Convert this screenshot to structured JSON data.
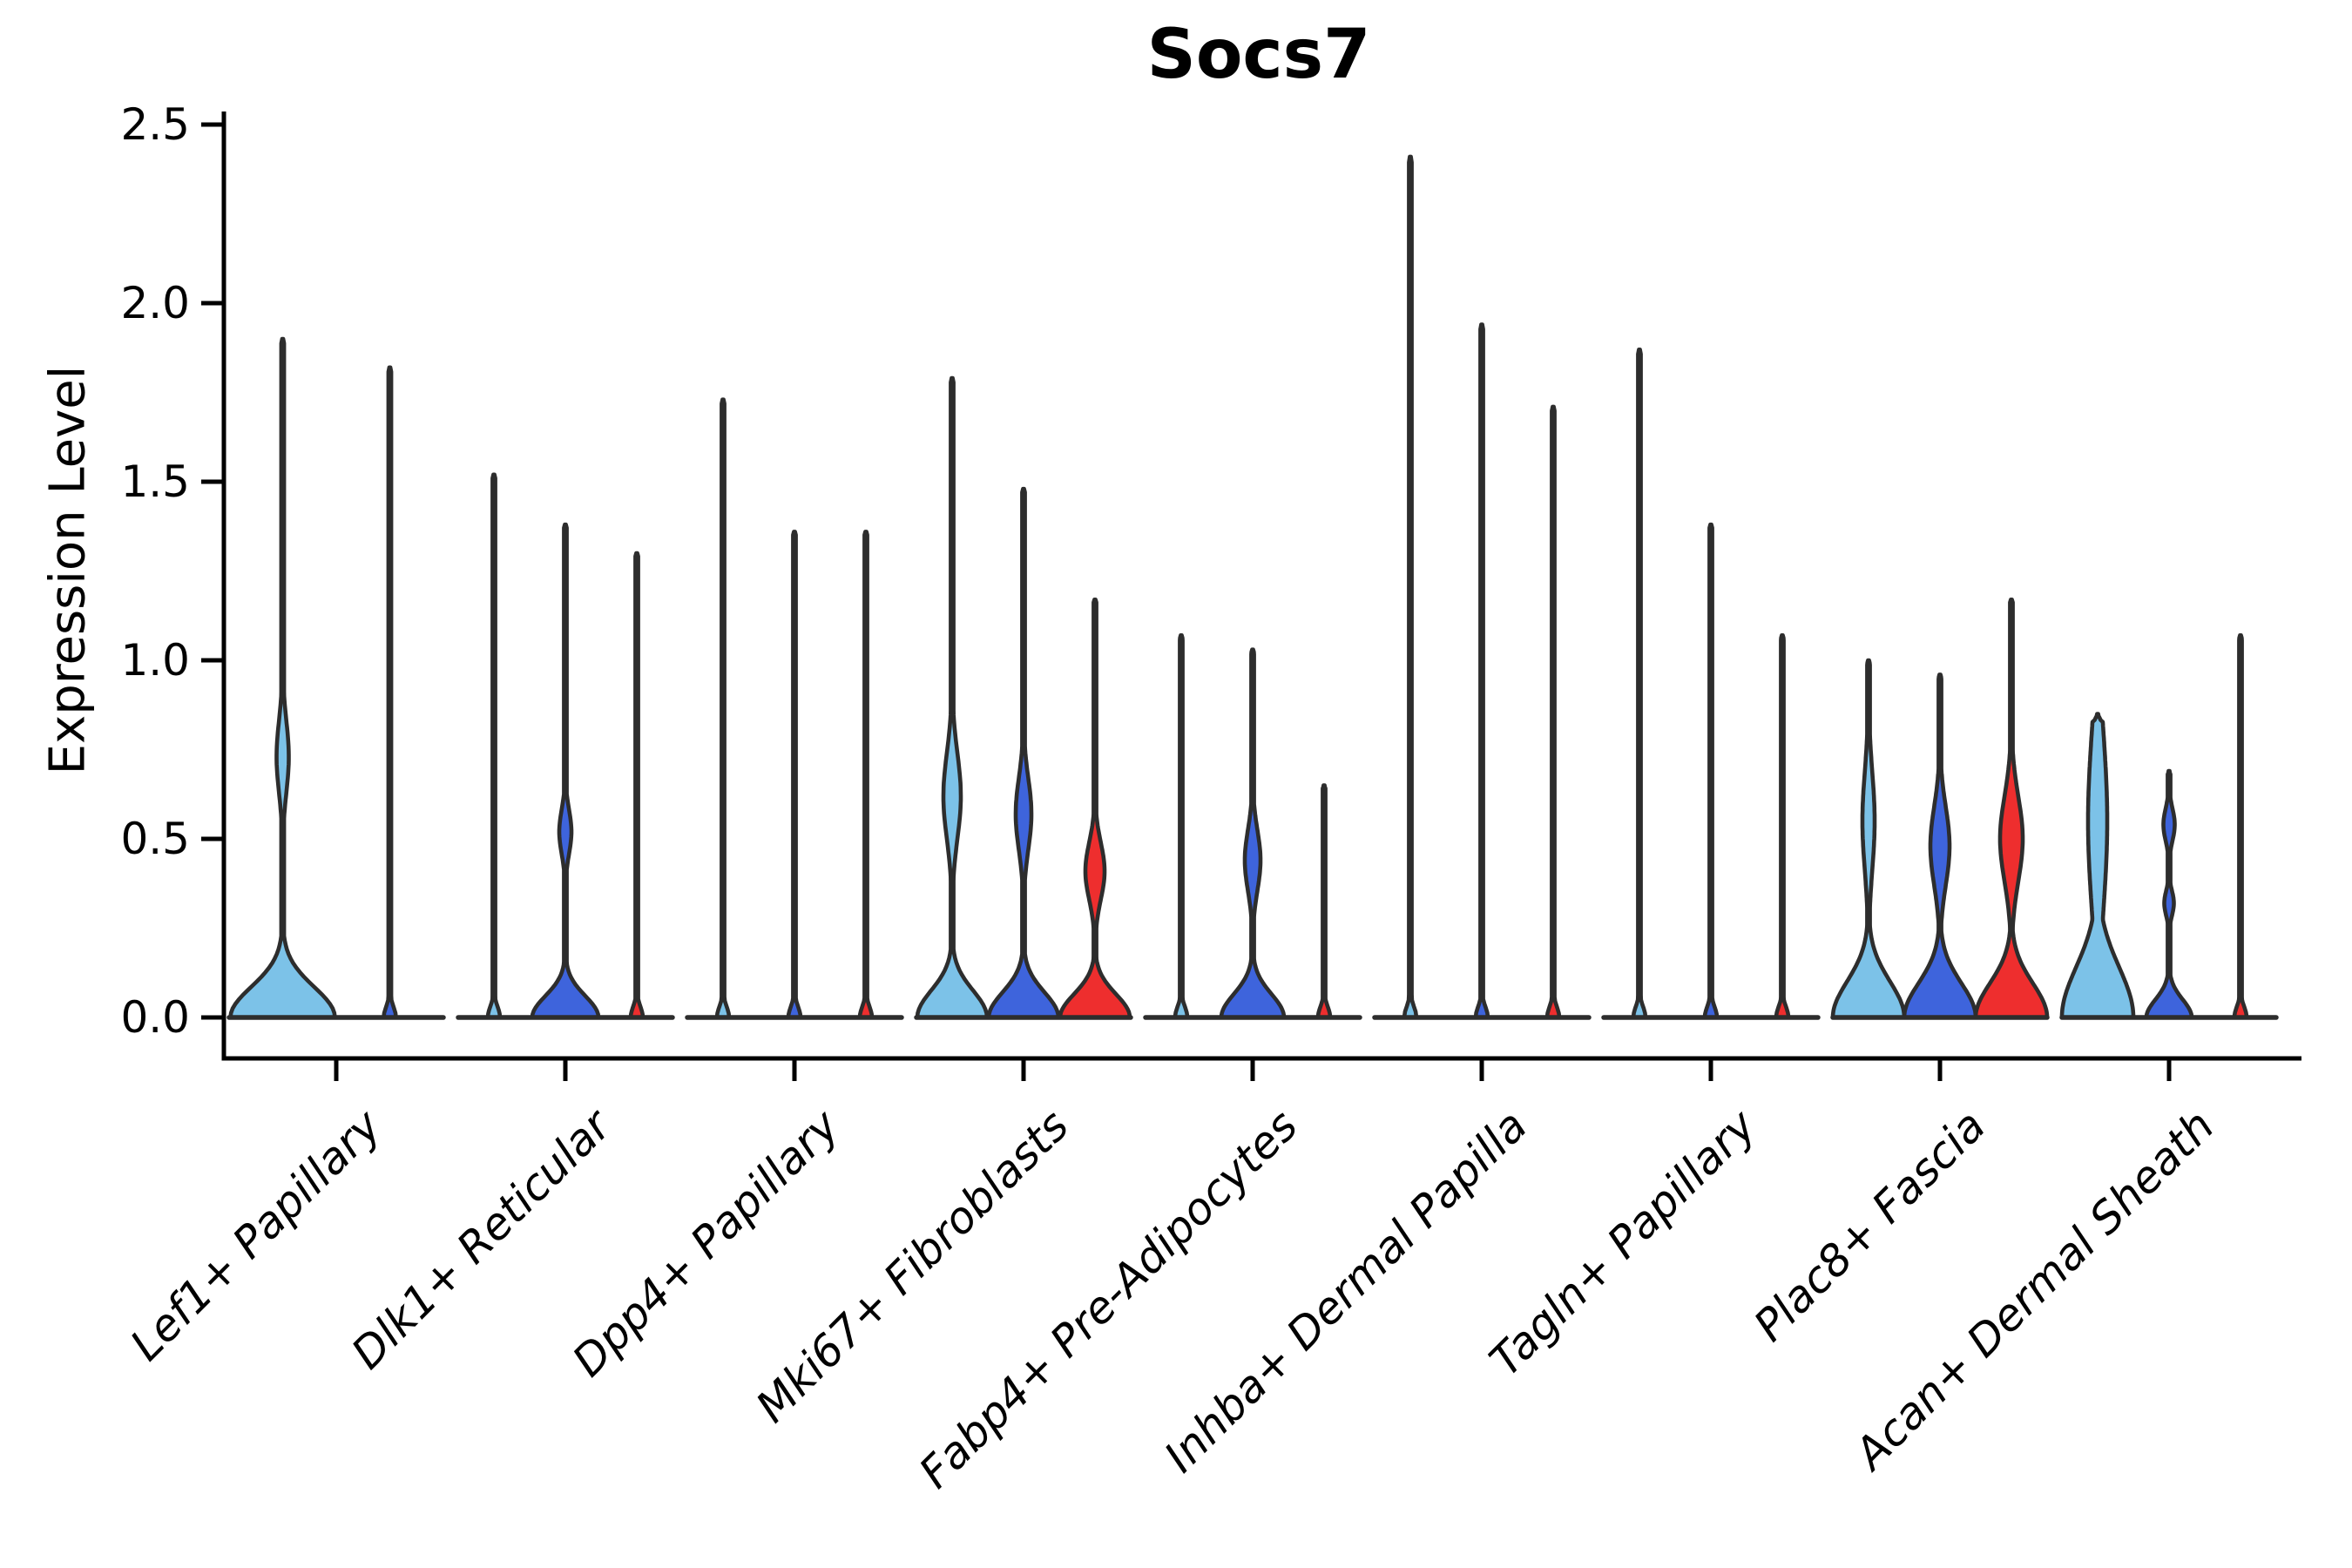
{
  "title": "Socs7",
  "y_axis": {
    "label": "Expression Level",
    "tick_labels": [
      "0.0",
      "0.5",
      "1.0",
      "1.5",
      "2.0",
      "2.5"
    ],
    "tick_values": [
      0,
      0.5,
      1.0,
      1.5,
      2.0,
      2.5
    ]
  },
  "colors": {
    "light_blue": "#7CC2E8",
    "royal_blue": "#3E64DC",
    "red": "#EE2E2E",
    "outline": "#2D2D2D",
    "axis": "#000000"
  },
  "chart_data": {
    "type": "violin",
    "title": "Socs7",
    "xlabel": "",
    "ylabel": "Expression Level",
    "ylim": [
      0,
      2.5
    ],
    "grid": false,
    "legend": "none",
    "categories": [
      "Lef1+ Papillary",
      "Dlk1+ Reticular",
      "Dpp4+ Papillary",
      "Mki67+ Fibroblasts",
      "Fabp4+ Pre-Adipocytes",
      "Inhba+ Dermal Papilla",
      "Tagln+ Papillary",
      "Plac8+ Fascia",
      "Acan+ Dermal Sheath"
    ],
    "groups": [
      {
        "category": "Lef1+ Papillary",
        "violins": [
          {
            "split": "light_blue",
            "max": 1.9,
            "base": {
              "w": 60,
              "s": 0.085
            },
            "bulges": [
              {
                "c": 0.73,
                "s": 0.1,
                "w": 7
              }
            ]
          },
          {
            "split": "royal_blue",
            "max": 1.82,
            "spike": true
          }
        ]
      },
      {
        "category": "Dlk1+ Reticular",
        "violins": [
          {
            "split": "light_blue",
            "max": 1.52,
            "spike": true
          },
          {
            "split": "royal_blue",
            "max": 1.38,
            "base": {
              "w": 38,
              "s": 0.06
            },
            "bulges": [
              {
                "c": 0.52,
                "s": 0.062,
                "w": 7
              }
            ]
          },
          {
            "split": "red",
            "max": 1.3,
            "spike": true
          }
        ]
      },
      {
        "category": "Dpp4+ Papillary",
        "violins": [
          {
            "split": "light_blue",
            "max": 1.73,
            "spike": true
          },
          {
            "split": "royal_blue",
            "max": 1.36,
            "spike": true
          },
          {
            "split": "red",
            "max": 1.36,
            "spike": true
          }
        ]
      },
      {
        "category": "Mki67+ Fibroblasts",
        "violins": [
          {
            "split": "light_blue",
            "max": 1.79,
            "base": {
              "w": 40,
              "s": 0.075
            },
            "bulges": [
              {
                "c": 0.62,
                "s": 0.12,
                "w": 10
              }
            ]
          },
          {
            "split": "royal_blue",
            "max": 1.48,
            "base": {
              "w": 40,
              "s": 0.07
            },
            "bulges": [
              {
                "c": 0.57,
                "s": 0.1,
                "w": 9
              }
            ]
          },
          {
            "split": "red",
            "max": 1.17,
            "base": {
              "w": 40,
              "s": 0.065
            },
            "bulges": [
              {
                "c": 0.41,
                "s": 0.08,
                "w": 11
              }
            ]
          }
        ]
      },
      {
        "category": "Fabp4+ Pre-Adipocytes",
        "violins": [
          {
            "split": "light_blue",
            "max": 1.07,
            "spike": true
          },
          {
            "split": "royal_blue",
            "max": 1.03,
            "base": {
              "w": 36,
              "s": 0.065
            },
            "bulges": [
              {
                "c": 0.44,
                "s": 0.085,
                "w": 9
              }
            ]
          },
          {
            "split": "red",
            "max": 0.65,
            "spike": true
          }
        ]
      },
      {
        "category": "Inhba+ Dermal Papilla",
        "violins": [
          {
            "split": "light_blue",
            "max": 2.41,
            "spike": true
          },
          {
            "split": "royal_blue",
            "max": 1.94,
            "spike": true
          },
          {
            "split": "red",
            "max": 1.71,
            "spike": true
          }
        ]
      },
      {
        "category": "Tagln+ Papillary",
        "violins": [
          {
            "split": "light_blue",
            "max": 1.87,
            "spike": true
          },
          {
            "split": "royal_blue",
            "max": 1.38,
            "spike": true
          },
          {
            "split": "red",
            "max": 1.07,
            "spike": true
          }
        ]
      },
      {
        "category": "Plac8+ Fascia",
        "violins": [
          {
            "split": "light_blue",
            "max": 1.0,
            "base": {
              "w": 41,
              "s": 0.1
            },
            "bulges": [
              {
                "c": 0.55,
                "s": 0.14,
                "w": 7
              }
            ]
          },
          {
            "split": "royal_blue",
            "max": 0.96,
            "base": {
              "w": 41,
              "s": 0.095
            },
            "bulges": [
              {
                "c": 0.48,
                "s": 0.11,
                "w": 11
              }
            ]
          },
          {
            "split": "red",
            "max": 1.17,
            "base": {
              "w": 41,
              "s": 0.095
            },
            "bulges": [
              {
                "c": 0.5,
                "s": 0.12,
                "w": 13
              }
            ]
          }
        ]
      },
      {
        "category": "Acan+ Dermal Sheath",
        "violins": [
          {
            "split": "light_blue",
            "max": 0.85,
            "base": {
              "w": 41,
              "s": 0.14
            },
            "bulges": [
              {
                "c": 0.55,
                "s": 0.25,
                "w": 11
              }
            ]
          },
          {
            "split": "royal_blue",
            "max": 0.69,
            "base": {
              "w": 26,
              "s": 0.05
            },
            "bulges": [
              {
                "c": 0.32,
                "s": 0.035,
                "w": 5.5
              },
              {
                "c": 0.54,
                "s": 0.045,
                "w": 6.5
              }
            ]
          },
          {
            "split": "red",
            "max": 1.07,
            "spike": true
          }
        ]
      }
    ]
  }
}
